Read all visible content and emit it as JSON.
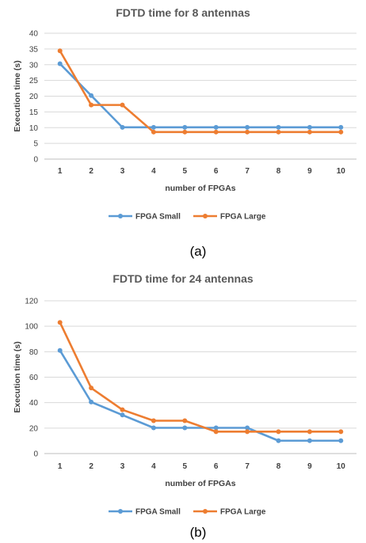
{
  "chart_data": [
    {
      "type": "line",
      "title": "FDTD time for 8 antennas",
      "xlabel": "number of FPGAs",
      "ylabel": "Execution time (s)",
      "categories": [
        "1",
        "2",
        "3",
        "4",
        "5",
        "6",
        "7",
        "8",
        "9",
        "10"
      ],
      "ylim": [
        0,
        40
      ],
      "yticks": [
        "0",
        "5",
        "10",
        "15",
        "20",
        "25",
        "30",
        "35",
        "40"
      ],
      "grid": true,
      "legend": "bottom",
      "caption": "(a)",
      "series": [
        {
          "name": "FPGA Small",
          "color": "#5B9BD5",
          "values": [
            30.3,
            20.2,
            10.1,
            10.1,
            10.1,
            10.1,
            10.1,
            10.1,
            10.1,
            10.1
          ]
        },
        {
          "name": "FPGA Large",
          "color": "#ED7D31",
          "values": [
            34.4,
            17.2,
            17.2,
            8.6,
            8.6,
            8.6,
            8.6,
            8.6,
            8.6,
            8.6
          ]
        }
      ]
    },
    {
      "type": "line",
      "title": "FDTD time for 24 antennas",
      "xlabel": "number of FPGAs",
      "ylabel": "Execution time (s)",
      "categories": [
        "1",
        "2",
        "3",
        "4",
        "5",
        "6",
        "7",
        "8",
        "9",
        "10"
      ],
      "ylim": [
        0,
        120
      ],
      "yticks": [
        "0",
        "20",
        "40",
        "60",
        "80",
        "100",
        "120"
      ],
      "grid": true,
      "legend": "bottom",
      "caption": "(b)",
      "series": [
        {
          "name": "FPGA Small",
          "color": "#5B9BD5",
          "values": [
            81,
            40.5,
            30.3,
            20.2,
            20.2,
            20.2,
            20.2,
            10.1,
            10.1,
            10.1
          ]
        },
        {
          "name": "FPGA Large",
          "color": "#ED7D31",
          "values": [
            103,
            51.5,
            34.4,
            25.8,
            25.8,
            17.2,
            17.2,
            17.2,
            17.2,
            17.2
          ]
        }
      ]
    }
  ]
}
